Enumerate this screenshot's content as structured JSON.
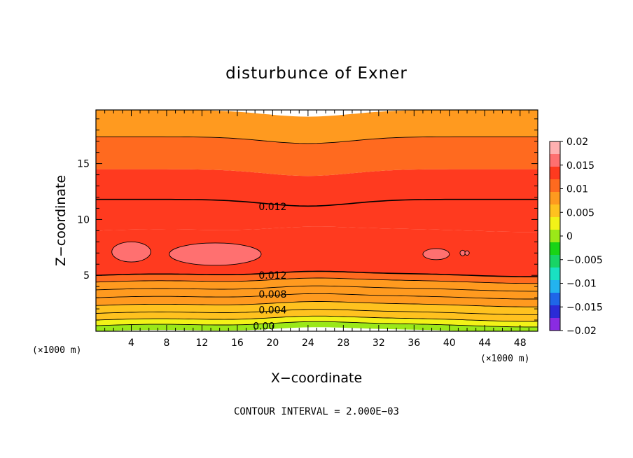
{
  "chart_data": {
    "type": "contour",
    "title": "disturbunce of Exner",
    "xlabel": "X−coordinate",
    "ylabel": "Z−coordinate",
    "x_unit_label": "(×1000 m)",
    "z_unit_label": "(×1000 m)",
    "xlim": [
      0,
      50
    ],
    "zlim": [
      0,
      19.8
    ],
    "x_ticks": [
      4,
      8,
      12,
      16,
      20,
      24,
      28,
      32,
      36,
      40,
      44,
      48
    ],
    "z_ticks": [
      5,
      10,
      15
    ],
    "colorbar": {
      "range": [
        -0.02,
        0.02
      ],
      "tick_labels": [
        "0.02",
        "0.015",
        "0.01",
        "0.005",
        "0",
        "−0.005",
        "−0.01",
        "−0.015",
        "−0.02"
      ],
      "tick_values": [
        0.02,
        0.015,
        0.01,
        0.005,
        0,
        -0.005,
        -0.01,
        -0.015,
        -0.02
      ],
      "colors_low_to_high": [
        "#8a2be2",
        "#2b2bd6",
        "#1f66e8",
        "#23b3ef",
        "#19e1c2",
        "#18d466",
        "#19d416",
        "#9be818",
        "#f2f218",
        "#ffc21f",
        "#ff9a1f",
        "#ff6a1f",
        "#ff3a1f",
        "#ff7070",
        "#ffb0b0"
      ]
    },
    "contour_interval": 0.002,
    "contour_labels": [
      {
        "text": "0.012",
        "x": 20,
        "z": 11.6
      },
      {
        "text": "0.012",
        "x": 20,
        "z": 4.8
      },
      {
        "text": "0.008",
        "x": 20,
        "z": 3.1
      },
      {
        "text": "0.004",
        "x": 20,
        "z": 1.7
      },
      {
        "text": "0.00",
        "x": 19,
        "z": 0.3
      }
    ],
    "bands_bottom_to_top": [
      {
        "z0": 0.0,
        "z1": 0.5,
        "value": 0.0
      },
      {
        "z0": 0.5,
        "z1": 1.0,
        "value": 0.002
      },
      {
        "z0": 1.0,
        "z1": 1.6,
        "value": 0.004
      },
      {
        "z0": 1.6,
        "z1": 2.3,
        "value": 0.006
      },
      {
        "z0": 2.3,
        "z1": 3.0,
        "value": 0.007
      },
      {
        "z0": 3.0,
        "z1": 3.7,
        "value": 0.008
      },
      {
        "z0": 3.7,
        "z1": 4.4,
        "value": 0.009
      },
      {
        "z0": 4.4,
        "z1": 5.0,
        "value": 0.01
      },
      {
        "z0": 5.0,
        "z1": 9.0,
        "value": 0.014
      },
      {
        "z0": 9.0,
        "z1": 11.8,
        "value": 0.013
      },
      {
        "z0": 11.8,
        "z1": 14.5,
        "value": 0.012
      },
      {
        "z0": 14.5,
        "z1": 17.4,
        "value": 0.011
      },
      {
        "z0": 17.4,
        "z1": 19.8,
        "value": 0.009
      }
    ],
    "contour_lines_z": [
      0.5,
      1.0,
      1.6,
      2.3,
      3.0,
      3.7,
      4.4,
      5.0,
      11.8,
      17.4
    ],
    "highs": [
      {
        "x": 4.0,
        "z": 7.1,
        "rx": 2.2,
        "rz": 0.9
      },
      {
        "x": 13.5,
        "z": 6.9,
        "rx": 5.2,
        "rz": 1.0
      },
      {
        "x": 38.5,
        "z": 6.9,
        "rx": 1.5,
        "rz": 0.5
      },
      {
        "x": 41.5,
        "z": 7.0,
        "rx": 0.3,
        "rz": 0.25
      },
      {
        "x": 42.0,
        "z": 7.0,
        "rx": 0.25,
        "rz": 0.2
      }
    ]
  },
  "footer": "CONTOUR INTERVAL = 2.000E−03"
}
